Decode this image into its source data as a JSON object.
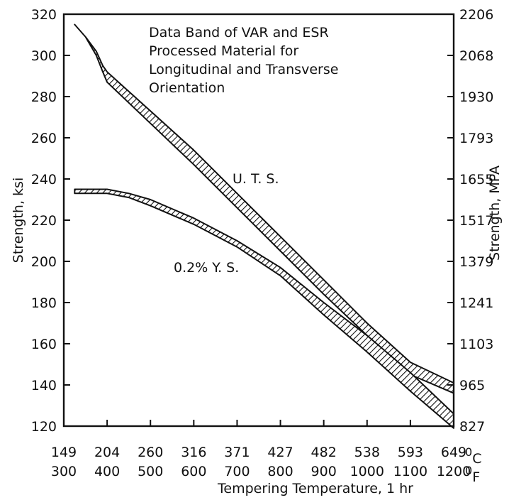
{
  "chart_data": {
    "type": "area",
    "title": "Data Band of VAR and ESR Processed Material for Longitudinal and Transverse Orientation",
    "title_lines": [
      "Data Band of VAR and ESR",
      "Processed Material for",
      "Longitudinal and Transverse",
      "Orientation"
    ],
    "xlabel": "Tempering Temperature, 1 hr",
    "ylabel_left": "Strength, ksi",
    "ylabel_right": "Strength, MPA",
    "x_unit_top": "oC",
    "x_unit_bottom": "oF",
    "x_unit_top_parts": [
      "0",
      "C"
    ],
    "x_unit_bottom_parts": [
      "0",
      "F"
    ],
    "xlim_F": [
      300,
      1200
    ],
    "ylim_ksi": [
      120,
      320
    ],
    "x_ticks_F": [
      "300",
      "400",
      "500",
      "600",
      "700",
      "800",
      "900",
      "1000",
      "1100",
      "1200"
    ],
    "x_ticks_C": [
      "149",
      "204",
      "260",
      "316",
      "371",
      "427",
      "482",
      "538",
      "593",
      "649"
    ],
    "y_ticks_ksi": [
      "120",
      "140",
      "160",
      "180",
      "200",
      "220",
      "240",
      "260",
      "280",
      "300",
      "320"
    ],
    "y_ticks_MPa": [
      "827",
      "965",
      "1103",
      "1241",
      "1379",
      "1517",
      "1655",
      "1793",
      "1930",
      "2068",
      "2206"
    ],
    "grid": false,
    "series": [
      {
        "name": "U. T. S.",
        "x": [
          325,
          350,
          375,
          390,
          400,
          500,
          600,
          700,
          800,
          900,
          1000,
          1100,
          1200
        ],
        "upper": [
          315,
          309,
          302,
          295,
          292,
          273,
          254,
          233,
          212,
          191,
          170,
          151,
          141
        ],
        "lower": [
          315,
          309,
          300,
          292,
          287,
          267,
          247,
          226,
          205,
          184,
          164,
          145,
          136
        ]
      },
      {
        "name": "0.2% Y. S.",
        "x": [
          325,
          400,
          450,
          500,
          600,
          700,
          800,
          900,
          1000,
          1100,
          1200
        ],
        "upper": [
          235,
          235,
          233,
          230,
          221,
          210,
          197,
          180,
          164,
          146,
          126
        ],
        "lower": [
          233,
          233,
          231,
          227,
          218,
          207,
          193,
          174,
          156,
          137,
          119
        ]
      }
    ]
  }
}
